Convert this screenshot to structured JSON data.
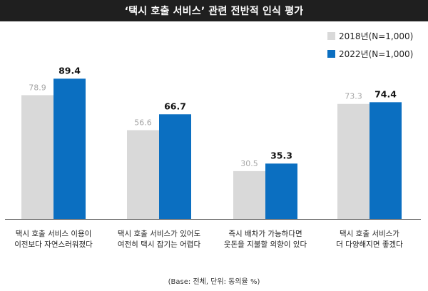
{
  "chart_data": {
    "type": "bar",
    "title": "‘택시 호출 서비스’ 관련 전반적 인식 평가",
    "categories": [
      [
        "택시 호출 서비스 이용이",
        "이전보다 자연스러워졌다"
      ],
      [
        "택시 호출 서비스가 있어도",
        "여전히 택시 잡기는 어렵다"
      ],
      [
        "즉시 배차가 가능하다면",
        "웃돈을 지불할 의향이 있다"
      ],
      [
        "택시 호출 서비스가",
        "더 다양해지면 좋겠다"
      ]
    ],
    "series": [
      {
        "name": "2018년(N=1,000)",
        "values": [
          78.9,
          56.6,
          30.5,
          73.3
        ],
        "color": "#d9d9d9",
        "label_color": "#a6a6a6"
      },
      {
        "name": "2022년(N=1,000)",
        "values": [
          89.4,
          66.7,
          35.3,
          74.4
        ],
        "color": "#0b6fc1",
        "label_color": "#111111"
      }
    ],
    "ylim": [
      0,
      100
    ],
    "grid": false,
    "legend_position": "top-right",
    "footnote": "(Base: 전체, 단위: 동의율 %)"
  }
}
